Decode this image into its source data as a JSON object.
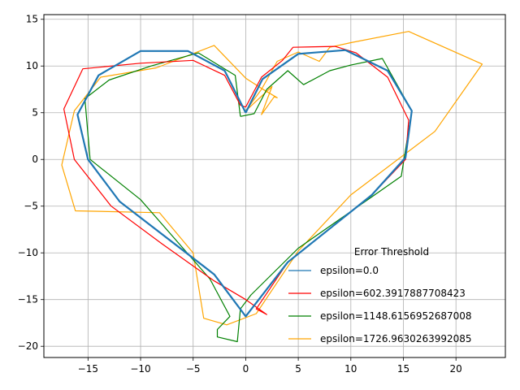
{
  "chart_data": {
    "type": "line",
    "xlim": [
      -19.2,
      24.7
    ],
    "ylim": [
      -21.2,
      15.5
    ],
    "x_ticks": [
      -15,
      -10,
      -5,
      0,
      5,
      10,
      15,
      20
    ],
    "y_ticks": [
      -20,
      -15,
      -10,
      -5,
      0,
      5,
      10,
      15
    ],
    "x_tick_labels": [
      "−15",
      "−10",
      "−5",
      "0",
      "5",
      "10",
      "15",
      "20"
    ],
    "y_tick_labels": [
      "−20",
      "−15",
      "−10",
      "−5",
      "0",
      "5",
      "10",
      "15"
    ],
    "grid": true,
    "legend": {
      "title": "Error Threshold",
      "placement": "lower-right"
    },
    "series": [
      {
        "name": "epsilon=0.0",
        "color": "#1f77b4",
        "width": 2.2,
        "points": [
          [
            0,
            5
          ],
          [
            1.6,
            8.6
          ],
          [
            5,
            11.3
          ],
          [
            9.5,
            11.7
          ],
          [
            13.5,
            9.5
          ],
          [
            15.8,
            5.2
          ],
          [
            15.2,
            0.2
          ],
          [
            12,
            -3.8
          ],
          [
            4,
            -11
          ],
          [
            0,
            -16.8
          ],
          [
            -3,
            -12.3
          ],
          [
            -12,
            -4.5
          ],
          [
            -15,
            0
          ],
          [
            -16,
            4.8
          ],
          [
            -14,
            9
          ],
          [
            -10,
            11.6
          ],
          [
            -5.5,
            11.6
          ],
          [
            -2,
            9.5
          ],
          [
            0,
            5
          ]
        ]
      },
      {
        "name": "epsilon=602.3917887708423",
        "color": "#ff0000",
        "width": 1.2,
        "points": [
          [
            0,
            5.6
          ],
          [
            1.5,
            8.8
          ],
          [
            3.5,
            10.6
          ],
          [
            4.5,
            12
          ],
          [
            8.5,
            12.1
          ],
          [
            10.5,
            11.4
          ],
          [
            13.5,
            8.8
          ],
          [
            15.5,
            4.2
          ],
          [
            15.2,
            0
          ],
          [
            12,
            -3.8
          ],
          [
            4,
            -11
          ],
          [
            1,
            -16
          ],
          [
            2,
            -16.6
          ],
          [
            0,
            -15
          ],
          [
            -3,
            -13
          ],
          [
            -8,
            -9
          ],
          [
            -12.8,
            -5
          ],
          [
            -16.3,
            0
          ],
          [
            -17.3,
            5.4
          ],
          [
            -15.5,
            9.7
          ],
          [
            -10,
            10.3
          ],
          [
            -5,
            10.6
          ],
          [
            -2,
            9
          ],
          [
            -0.5,
            5.8
          ],
          [
            0,
            5.6
          ]
        ]
      },
      {
        "name": "epsilon=1148.6156952687008",
        "color": "#008000",
        "width": 1.2,
        "points": [
          [
            -0.5,
            4.6
          ],
          [
            0.8,
            4.9
          ],
          [
            2,
            7.5
          ],
          [
            4,
            9.5
          ],
          [
            5.5,
            8
          ],
          [
            8,
            9.5
          ],
          [
            10,
            10.1
          ],
          [
            13,
            10.8
          ],
          [
            15.8,
            5.2
          ],
          [
            14.8,
            -1.8
          ],
          [
            12,
            -4
          ],
          [
            5,
            -9.5
          ],
          [
            0.5,
            -14.5
          ],
          [
            -0.5,
            -16
          ],
          [
            -0.8,
            -19.5
          ],
          [
            -2.7,
            -19
          ],
          [
            -2.7,
            -18.2
          ],
          [
            -1.5,
            -16.8
          ],
          [
            -3.4,
            -12.8
          ],
          [
            -10,
            -4.3
          ],
          [
            -14.8,
            0
          ],
          [
            -15.3,
            6.5
          ],
          [
            -13,
            8.5
          ],
          [
            -9,
            10
          ],
          [
            -4.5,
            11.4
          ],
          [
            -1,
            9
          ],
          [
            -0.5,
            4.6
          ]
        ]
      },
      {
        "name": "epsilon=1726.9630263992085",
        "color": "#ffa500",
        "width": 1.2,
        "points": [
          [
            0,
            5.2
          ],
          [
            1.5,
            7.5
          ],
          [
            3,
            10.5
          ],
          [
            5,
            11.5
          ],
          [
            7,
            10.5
          ],
          [
            8,
            12
          ],
          [
            10,
            12.5
          ],
          [
            15.5,
            13.7
          ],
          [
            22.5,
            10.2
          ],
          [
            18,
            3
          ],
          [
            10,
            -3.8
          ],
          [
            5,
            -9.8
          ],
          [
            1,
            -16.5
          ],
          [
            -1.8,
            -17.7
          ],
          [
            -4,
            -17
          ],
          [
            -5,
            -10
          ],
          [
            -8.2,
            -5.7
          ],
          [
            -16.2,
            -5.5
          ],
          [
            -17.5,
            -0.6
          ],
          [
            -16.3,
            5.2
          ],
          [
            -13.8,
            8.8
          ],
          [
            -8.5,
            9.8
          ],
          [
            -3,
            12.2
          ],
          [
            0,
            8.7
          ],
          [
            1.5,
            7.6
          ],
          [
            3,
            6.6
          ],
          [
            2.7,
            6.7
          ],
          [
            1.5,
            4.8
          ],
          [
            2.5,
            7.8
          ],
          [
            0,
            5.2
          ]
        ]
      }
    ]
  }
}
